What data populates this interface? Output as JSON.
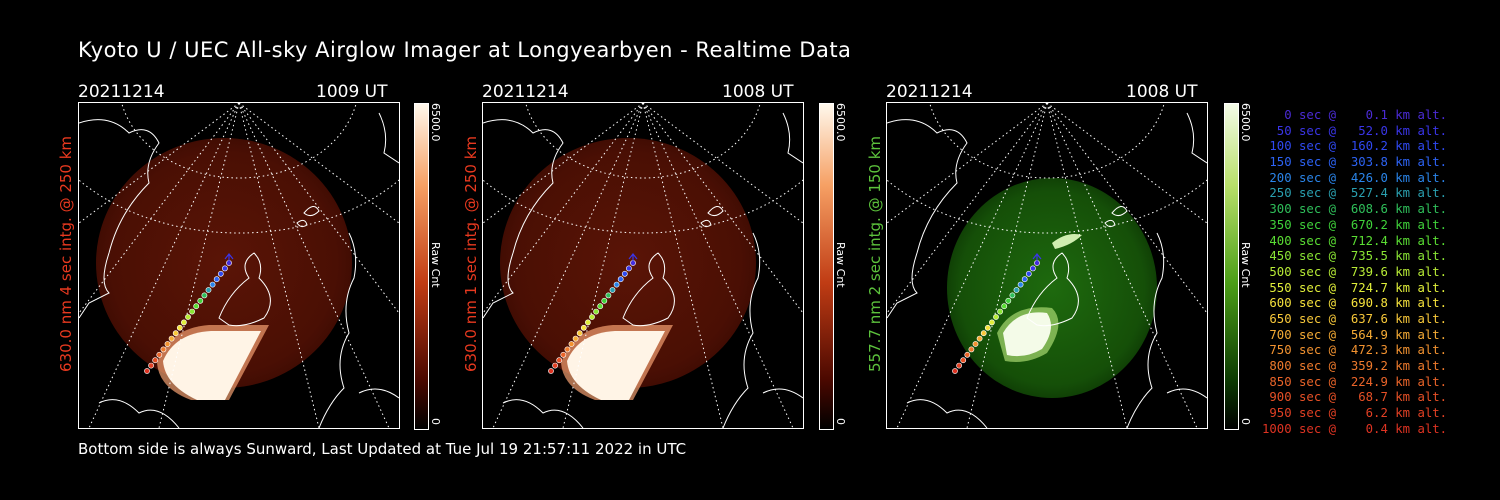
{
  "title": "Kyoto U / UEC All-sky Airglow Imager at Longyearbyen - Realtime Data",
  "footer": "Bottom side is always Sunward, Last Updated at Tue Jul 19 21:57:11 2022 in UTC",
  "colors": {
    "red_text": "#e8391f",
    "green_text": "#5cc23c",
    "background": "#000000"
  },
  "panels": [
    {
      "date": "20211214",
      "time": "1009 UT",
      "side_label": "630.0 nm 4 sec intg. @ 250 km",
      "colorbar_max": "6500.0",
      "colorbar_min": "0",
      "colorbar_label": "Raw Cnt",
      "palette": "red"
    },
    {
      "date": "20211214",
      "time": "1008 UT",
      "side_label": "630.0 nm 1 sec intg. @ 250 km",
      "colorbar_max": "6500.0",
      "colorbar_min": "0",
      "colorbar_label": "Raw Cnt",
      "palette": "red"
    },
    {
      "date": "20211214",
      "time": "1008 UT",
      "side_label": "557.7 nm 2 sec intg. @ 150 km",
      "colorbar_max": "6500.0",
      "colorbar_min": "0",
      "colorbar_label": "Raw Cnt",
      "palette": "green"
    }
  ],
  "legend": [
    {
      "text": "   0 sec @    0.1 km alt.",
      "color": "#4b2bd6"
    },
    {
      "text": "  50 sec @   52.0 km alt.",
      "color": "#3a35e8"
    },
    {
      "text": " 100 sec @  160.2 km alt.",
      "color": "#2f49f2"
    },
    {
      "text": " 150 sec @  303.8 km alt.",
      "color": "#2d63f5"
    },
    {
      "text": " 200 sec @  426.0 km alt.",
      "color": "#2a84e8"
    },
    {
      "text": " 250 sec @  527.4 km alt.",
      "color": "#2aa0b0"
    },
    {
      "text": " 300 sec @  608.6 km alt.",
      "color": "#2fbf5a"
    },
    {
      "text": " 350 sec @  670.2 km alt.",
      "color": "#3fd23a"
    },
    {
      "text": " 400 sec @  712.4 km alt.",
      "color": "#5ade33"
    },
    {
      "text": " 450 sec @  735.5 km alt.",
      "color": "#8ae534"
    },
    {
      "text": " 500 sec @  739.6 km alt.",
      "color": "#b8ec36"
    },
    {
      "text": " 550 sec @  724.7 km alt.",
      "color": "#e0ee3a"
    },
    {
      "text": " 600 sec @  690.8 km alt.",
      "color": "#f6e23c"
    },
    {
      "text": " 650 sec @  637.6 km alt.",
      "color": "#f8c83a"
    },
    {
      "text": " 700 sec @  564.9 km alt.",
      "color": "#f5ab35"
    },
    {
      "text": " 750 sec @  472.3 km alt.",
      "color": "#f29230"
    },
    {
      "text": " 800 sec @  359.2 km alt.",
      "color": "#ee7a2c"
    },
    {
      "text": " 850 sec @  224.9 km alt.",
      "color": "#ea6429"
    },
    {
      "text": " 900 sec @   68.7 km alt.",
      "color": "#e65026"
    },
    {
      "text": " 950 sec @    6.2 km alt.",
      "color": "#e24024"
    },
    {
      "text": "1000 sec @    0.4 km alt.",
      "color": "#de3322"
    }
  ]
}
